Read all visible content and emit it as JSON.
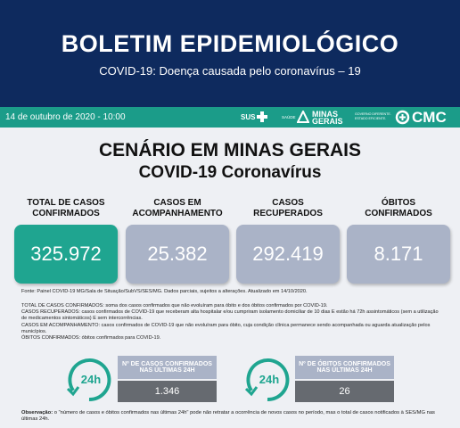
{
  "header": {
    "title": "BOLETIM EPIDEMIOLÓGICO",
    "subtitle": "COVID-19: Doença causada pelo coronavírus – 19"
  },
  "bar": {
    "date": "14 de outubro de 2020 - 10:00",
    "sus": "SUS",
    "saude": "SAÚDE",
    "state": "MINAS GERAIS",
    "slogan": "GOVERNO DIFERENTE. ESTADO EFICIENTE.",
    "cmc": "CMC"
  },
  "scenario": {
    "title": "CENÁRIO EM MINAS GERAIS",
    "subtitle": "COVID-19 Coronavírus",
    "cards": [
      {
        "label": "TOTAL DE CASOS CONFIRMADOS",
        "value": "325.972"
      },
      {
        "label": "CASOS EM ACOMPANHAMENTO",
        "value": "25.382"
      },
      {
        "label": "CASOS RECUPERADOS",
        "value": "292.419"
      },
      {
        "label": "ÓBITOS CONFIRMADOS",
        "value": "8.171"
      }
    ]
  },
  "source": "Fonte: Painel COVID-19 MG/Sala de Situação/SubVS/SES/MG. Dados parciais, sujeitos a alterações. Atualizado em 14/10/2020.",
  "definitions": [
    {
      "term": "TOTAL DE CASOS CONFIRMADOS:",
      "text": "soma dos casos confirmados que não evoluíram para óbito e dos óbitos confirmados por COVID-19."
    },
    {
      "term": "CASOS RECUPERADOS:",
      "text": "casos confirmados de COVID-19 que receberam alta hospitalar e/ou cumpriram isolamento domiciliar de 10 dias E estão há 72h assintomáticos (sem a utilização de medicamentos sintomáticos) E sem intercorrências."
    },
    {
      "term": "CASOS EM ACOMPANHAMENTO:",
      "text": "casos confirmados de COVID-19 que não evoluíram para óbito, cuja condição clínica permanece sendo acompanhada ou aguarda atualização pelos municípios."
    },
    {
      "term": "ÓBITOS CONFIRMADOS:",
      "text": "óbitos confirmados para COVID-19."
    }
  ],
  "last24": [
    {
      "icon": "24h",
      "label": "Nº DE CASOS CONFIRMADOS NAS ÚLTIMAS 24H",
      "value": "1.346"
    },
    {
      "icon": "24h",
      "label": "Nº DE ÓBITOS CONFIRMADOS NAS ÚLTIMAS 24H",
      "value": "26"
    }
  ],
  "note": {
    "term": "Observação:",
    "text": "o \"número de casos e óbitos confirmados nas últimas 24h\" pode não retratar a ocorrência de novos casos no período, mas o total de casos notificados à SES/MG nas últimas 24h."
  }
}
